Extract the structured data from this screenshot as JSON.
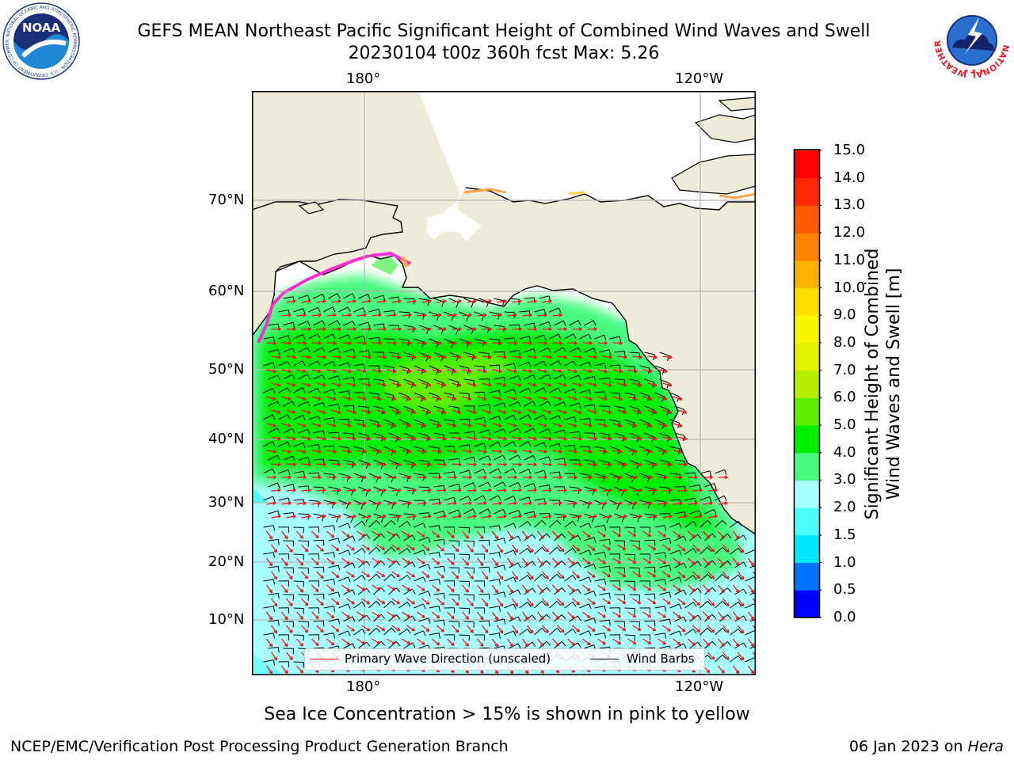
{
  "header": {
    "title_line1": "GEFS MEAN Northeast Pacific Significant Height of Combined Wind Waves and Swell",
    "title_line2": "20230104 t00z 360h fcst   Max: 5.26"
  },
  "logos": {
    "noaa_text": "NOAA",
    "noaa_ring": "NATIONAL OCEANIC AND ATMOSPHERIC ADMINISTRATION · U.S. DEPARTMENT OF COMMERCE",
    "nws_ring": "NATIONAL WEATHER SERVICE"
  },
  "map": {
    "lon_labels_top": [
      "180°",
      "120°W"
    ],
    "lon_labels_bottom": [
      "180°",
      "120°W"
    ],
    "lat_labels": [
      "70°N",
      "60°N",
      "50°N",
      "40°N",
      "30°N",
      "20°N",
      "10°N"
    ],
    "colors": {
      "land": "#efecda",
      "coast": "#000000",
      "grid": "#b5b5b5",
      "wave_arrow": "#e8141b",
      "wind_barb": "#000000",
      "ice_pink": "#ff2cd0",
      "ice_orange": "#ffa24a",
      "ice_yellow": "#ffd34a"
    }
  },
  "legend": {
    "wave_label": "Primary Wave Direction (unscaled)",
    "barb_label": "Wind Barbs"
  },
  "colorbar": {
    "title_line1": "Significant Height of Combined",
    "title_line2": "Wind Waves and Swell [m]",
    "ticks": [
      "0.0",
      "0.5",
      "1.0",
      "1.5",
      "2.0",
      "3.0",
      "4.0",
      "5.0",
      "6.0",
      "7.0",
      "8.0",
      "9.0",
      "10.0",
      "11.0",
      "12.0",
      "13.0",
      "14.0",
      "15.0"
    ],
    "colors": [
      "#0000ff",
      "#0073ff",
      "#00e8ff",
      "#4cffff",
      "#a8ffff",
      "#48fa7e",
      "#00ee00",
      "#62ee00",
      "#b5ee00",
      "#e2f200",
      "#f8f800",
      "#ffdf00",
      "#ffb300",
      "#ff8400",
      "#ff5a00",
      "#ff2800",
      "#ff0000"
    ]
  },
  "caption": "Sea Ice Concentration > 15% is shown in pink to yellow",
  "footer": {
    "left": "NCEP/EMC/Verification Post Processing Product Generation Branch",
    "date": "06 Jan 2023 on ",
    "machine": "Hera"
  }
}
